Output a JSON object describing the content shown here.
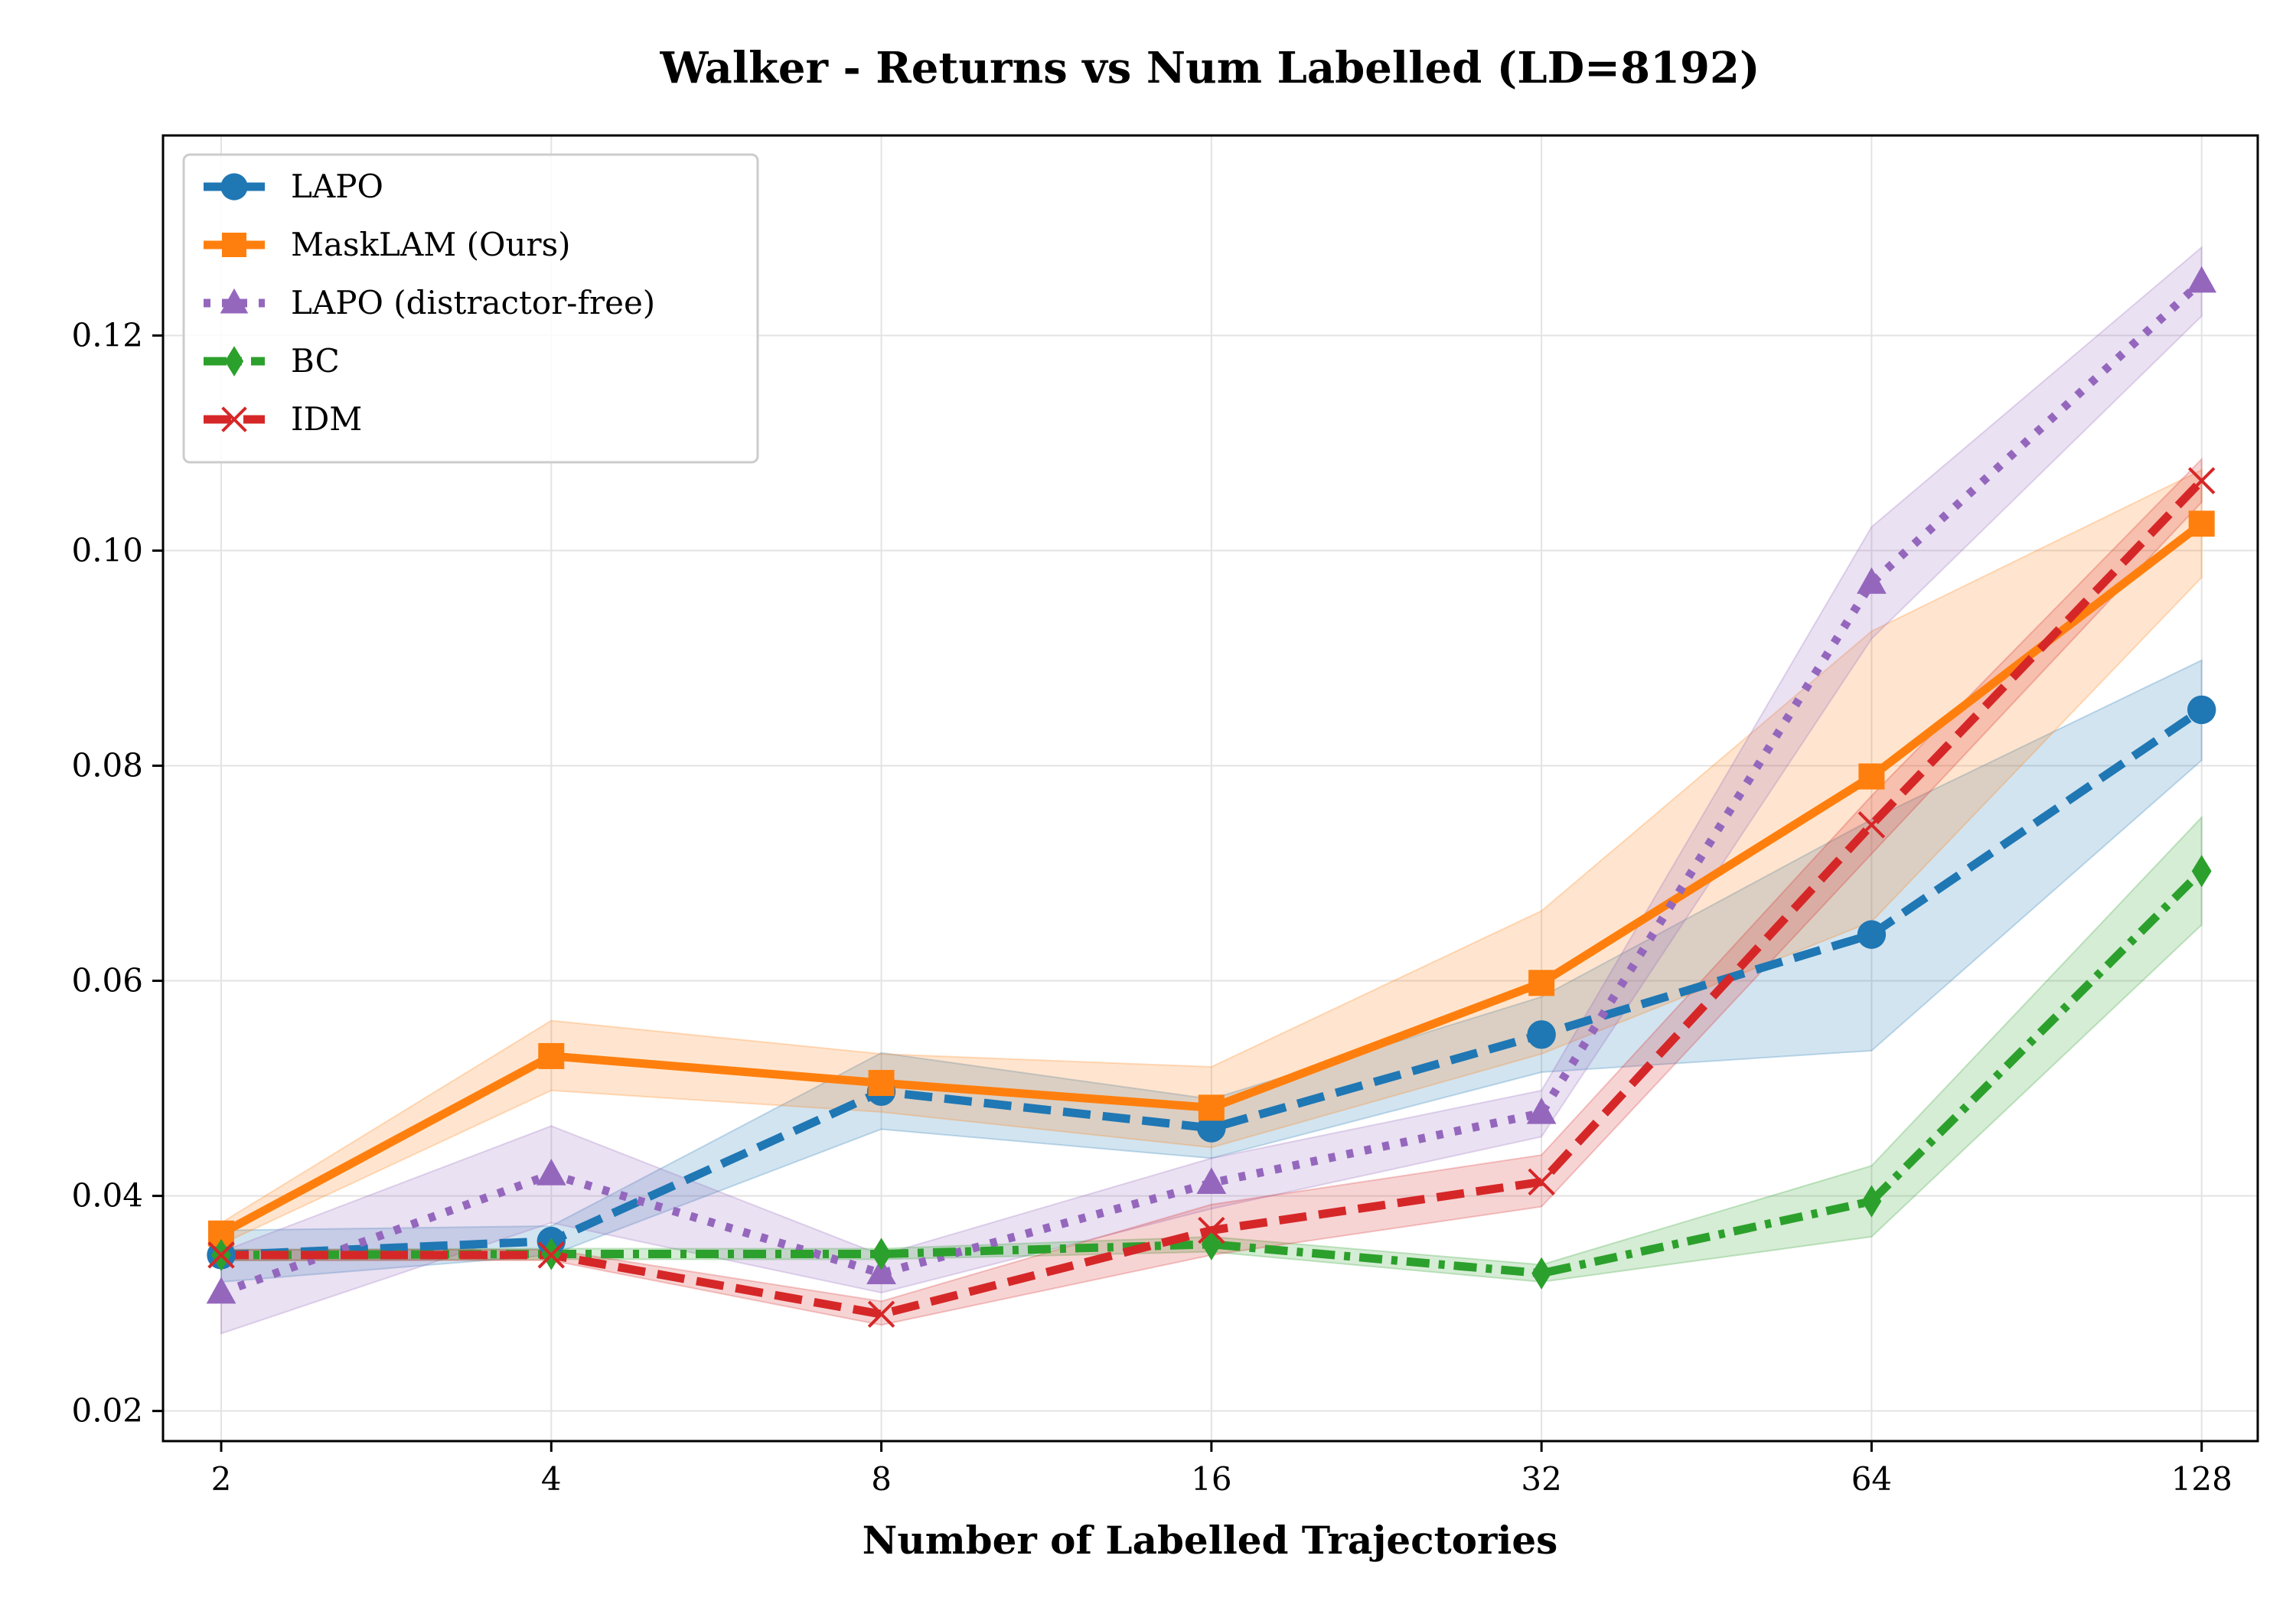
{
  "chart_data": {
    "type": "line",
    "title": "Walker - Returns vs Num Labelled (LD=8192)",
    "xlabel": "Number of Labelled Trajectories",
    "ylabel": "",
    "x_scale": "log2",
    "x": [
      2,
      4,
      8,
      16,
      32,
      64,
      128
    ],
    "x_tick_labels": [
      "2",
      "4",
      "8",
      "16",
      "32",
      "64",
      "128"
    ],
    "xlim": [
      1.77,
      144
    ],
    "ylim": [
      0.0172,
      0.1386
    ],
    "y_ticks": [
      0.02,
      0.04,
      0.06,
      0.08,
      0.1,
      0.12
    ],
    "y_tick_labels": [
      "0.02",
      "0.04",
      "0.06",
      "0.08",
      "0.10",
      "0.12"
    ],
    "grid": true,
    "legend_position": "top-left",
    "series": [
      {
        "name": "LAPO",
        "color": "#1f77b4",
        "linestyle": "dashed",
        "marker": "circle",
        "values": [
          0.0345,
          0.0358,
          0.0497,
          0.0463,
          0.055,
          0.0643,
          0.0852
        ],
        "lower": [
          0.032,
          0.0345,
          0.0462,
          0.0435,
          0.0515,
          0.0535,
          0.0805
        ],
        "upper": [
          0.0368,
          0.0372,
          0.0533,
          0.049,
          0.0585,
          0.075,
          0.0898
        ]
      },
      {
        "name": "MaskLAM (Ours)",
        "color": "#ff7f0e",
        "linestyle": "solid",
        "marker": "square",
        "values": [
          0.0365,
          0.053,
          0.0505,
          0.0482,
          0.0598,
          0.079,
          0.1025
        ],
        "lower": [
          0.0355,
          0.0498,
          0.0478,
          0.0445,
          0.0532,
          0.0655,
          0.0975
        ],
        "upper": [
          0.0375,
          0.0563,
          0.0532,
          0.052,
          0.0665,
          0.0925,
          0.1075
        ]
      },
      {
        "name": "LAPO (distractor-free)",
        "color": "#9467bd",
        "linestyle": "dotted",
        "marker": "triangle",
        "values": [
          0.031,
          0.042,
          0.0328,
          0.0412,
          0.0477,
          0.097,
          0.125
        ],
        "lower": [
          0.0272,
          0.0375,
          0.031,
          0.0388,
          0.0455,
          0.0918,
          0.1218
        ],
        "upper": [
          0.0348,
          0.0465,
          0.0345,
          0.0435,
          0.0498,
          0.1022,
          0.1282
        ]
      },
      {
        "name": "BC",
        "color": "#2ca02c",
        "linestyle": "dashdot",
        "marker": "diamond",
        "values": [
          0.0345,
          0.0346,
          0.0346,
          0.0355,
          0.0328,
          0.0395,
          0.0702
        ],
        "lower": [
          0.034,
          0.0341,
          0.0341,
          0.0348,
          0.032,
          0.0362,
          0.0652
        ],
        "upper": [
          0.035,
          0.0351,
          0.0351,
          0.0362,
          0.0336,
          0.0428,
          0.0752
        ]
      },
      {
        "name": "IDM",
        "color": "#d62728",
        "linestyle": "dashed",
        "marker": "x",
        "values": [
          0.0345,
          0.0345,
          0.029,
          0.0368,
          0.0413,
          0.0745,
          0.1065
        ],
        "lower": [
          0.034,
          0.034,
          0.028,
          0.0345,
          0.039,
          0.0718,
          0.1045
        ],
        "upper": [
          0.035,
          0.035,
          0.0302,
          0.0392,
          0.0438,
          0.0772,
          0.1085
        ]
      }
    ]
  }
}
